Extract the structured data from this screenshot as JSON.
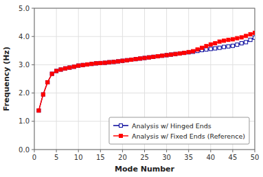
{
  "chart_data": {
    "type": "line",
    "xlabel": "Mode Number",
    "ylabel": "Frequency (Hz)",
    "x": [
      1,
      2,
      3,
      4,
      5,
      6,
      7,
      8,
      9,
      10,
      11,
      12,
      13,
      14,
      15,
      16,
      17,
      18,
      19,
      20,
      21,
      22,
      23,
      24,
      25,
      26,
      27,
      28,
      29,
      30,
      31,
      32,
      33,
      34,
      35,
      36,
      37,
      38,
      39,
      40,
      41,
      42,
      43,
      44,
      45,
      46,
      47,
      48,
      49,
      50
    ],
    "series": [
      {
        "name": "Analysis w/ Hinged Ends",
        "color": "#000099",
        "marker": "open-square",
        "values": [
          1.38,
          1.95,
          2.38,
          2.68,
          2.78,
          2.83,
          2.87,
          2.9,
          2.93,
          2.97,
          2.99,
          3.01,
          3.03,
          3.05,
          3.06,
          3.07,
          3.09,
          3.1,
          3.12,
          3.14,
          3.16,
          3.18,
          3.2,
          3.22,
          3.24,
          3.26,
          3.28,
          3.3,
          3.32,
          3.34,
          3.36,
          3.38,
          3.4,
          3.42,
          3.44,
          3.46,
          3.49,
          3.52,
          3.54,
          3.56,
          3.58,
          3.6,
          3.63,
          3.65,
          3.67,
          3.71,
          3.76,
          3.8,
          3.88,
          3.96
        ]
      },
      {
        "name": "Analysis w/ Fixed Ends (Reference)",
        "color": "#FF0000",
        "marker": "square",
        "values": [
          1.38,
          1.95,
          2.38,
          2.68,
          2.78,
          2.83,
          2.87,
          2.9,
          2.93,
          2.97,
          2.99,
          3.01,
          3.03,
          3.05,
          3.06,
          3.07,
          3.09,
          3.1,
          3.12,
          3.14,
          3.16,
          3.18,
          3.2,
          3.22,
          3.24,
          3.26,
          3.28,
          3.3,
          3.32,
          3.34,
          3.36,
          3.38,
          3.4,
          3.42,
          3.45,
          3.48,
          3.54,
          3.6,
          3.66,
          3.72,
          3.76,
          3.82,
          3.85,
          3.88,
          3.9,
          3.94,
          3.97,
          4.02,
          4.08,
          4.13
        ]
      }
    ],
    "xlim": [
      0,
      50
    ],
    "ylim": [
      0.0,
      5.0
    ],
    "xticks": [
      0,
      5,
      10,
      15,
      20,
      25,
      30,
      35,
      40,
      45,
      50
    ],
    "yticks": [
      {
        "value": 0.0,
        "label": "0.0"
      },
      {
        "value": 1.0,
        "label": "1.0"
      },
      {
        "value": 2.0,
        "label": "2.0"
      },
      {
        "value": 3.0,
        "label": "3.0"
      },
      {
        "value": 4.0,
        "label": "4.0"
      },
      {
        "value": 5.0,
        "label": "5.0"
      }
    ],
    "grid": true,
    "legend": "lower right"
  }
}
